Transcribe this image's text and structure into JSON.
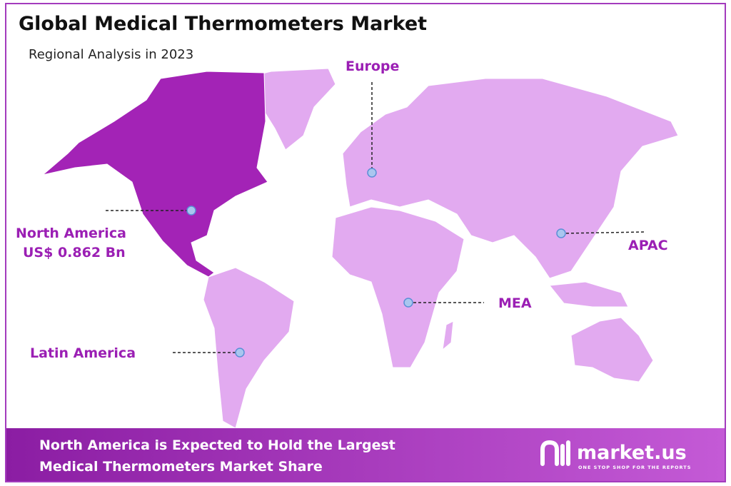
{
  "header": {
    "title": "Global Medical Thermometers Market",
    "subtitle": "Regional Analysis in 2023"
  },
  "regions": [
    {
      "name": "North America",
      "value": "US$ 0.862 Bn"
    },
    {
      "name": "Europe"
    },
    {
      "name": "APAC"
    },
    {
      "name": "MEA"
    },
    {
      "name": "Latin America"
    }
  ],
  "footer": {
    "lines": [
      "North America  is Expected to Hold the Largest",
      "Medical Thermometers Market Share"
    ],
    "brand": "market.us",
    "tagline": "ONE STOP SHOP FOR THE REPORTS"
  }
}
